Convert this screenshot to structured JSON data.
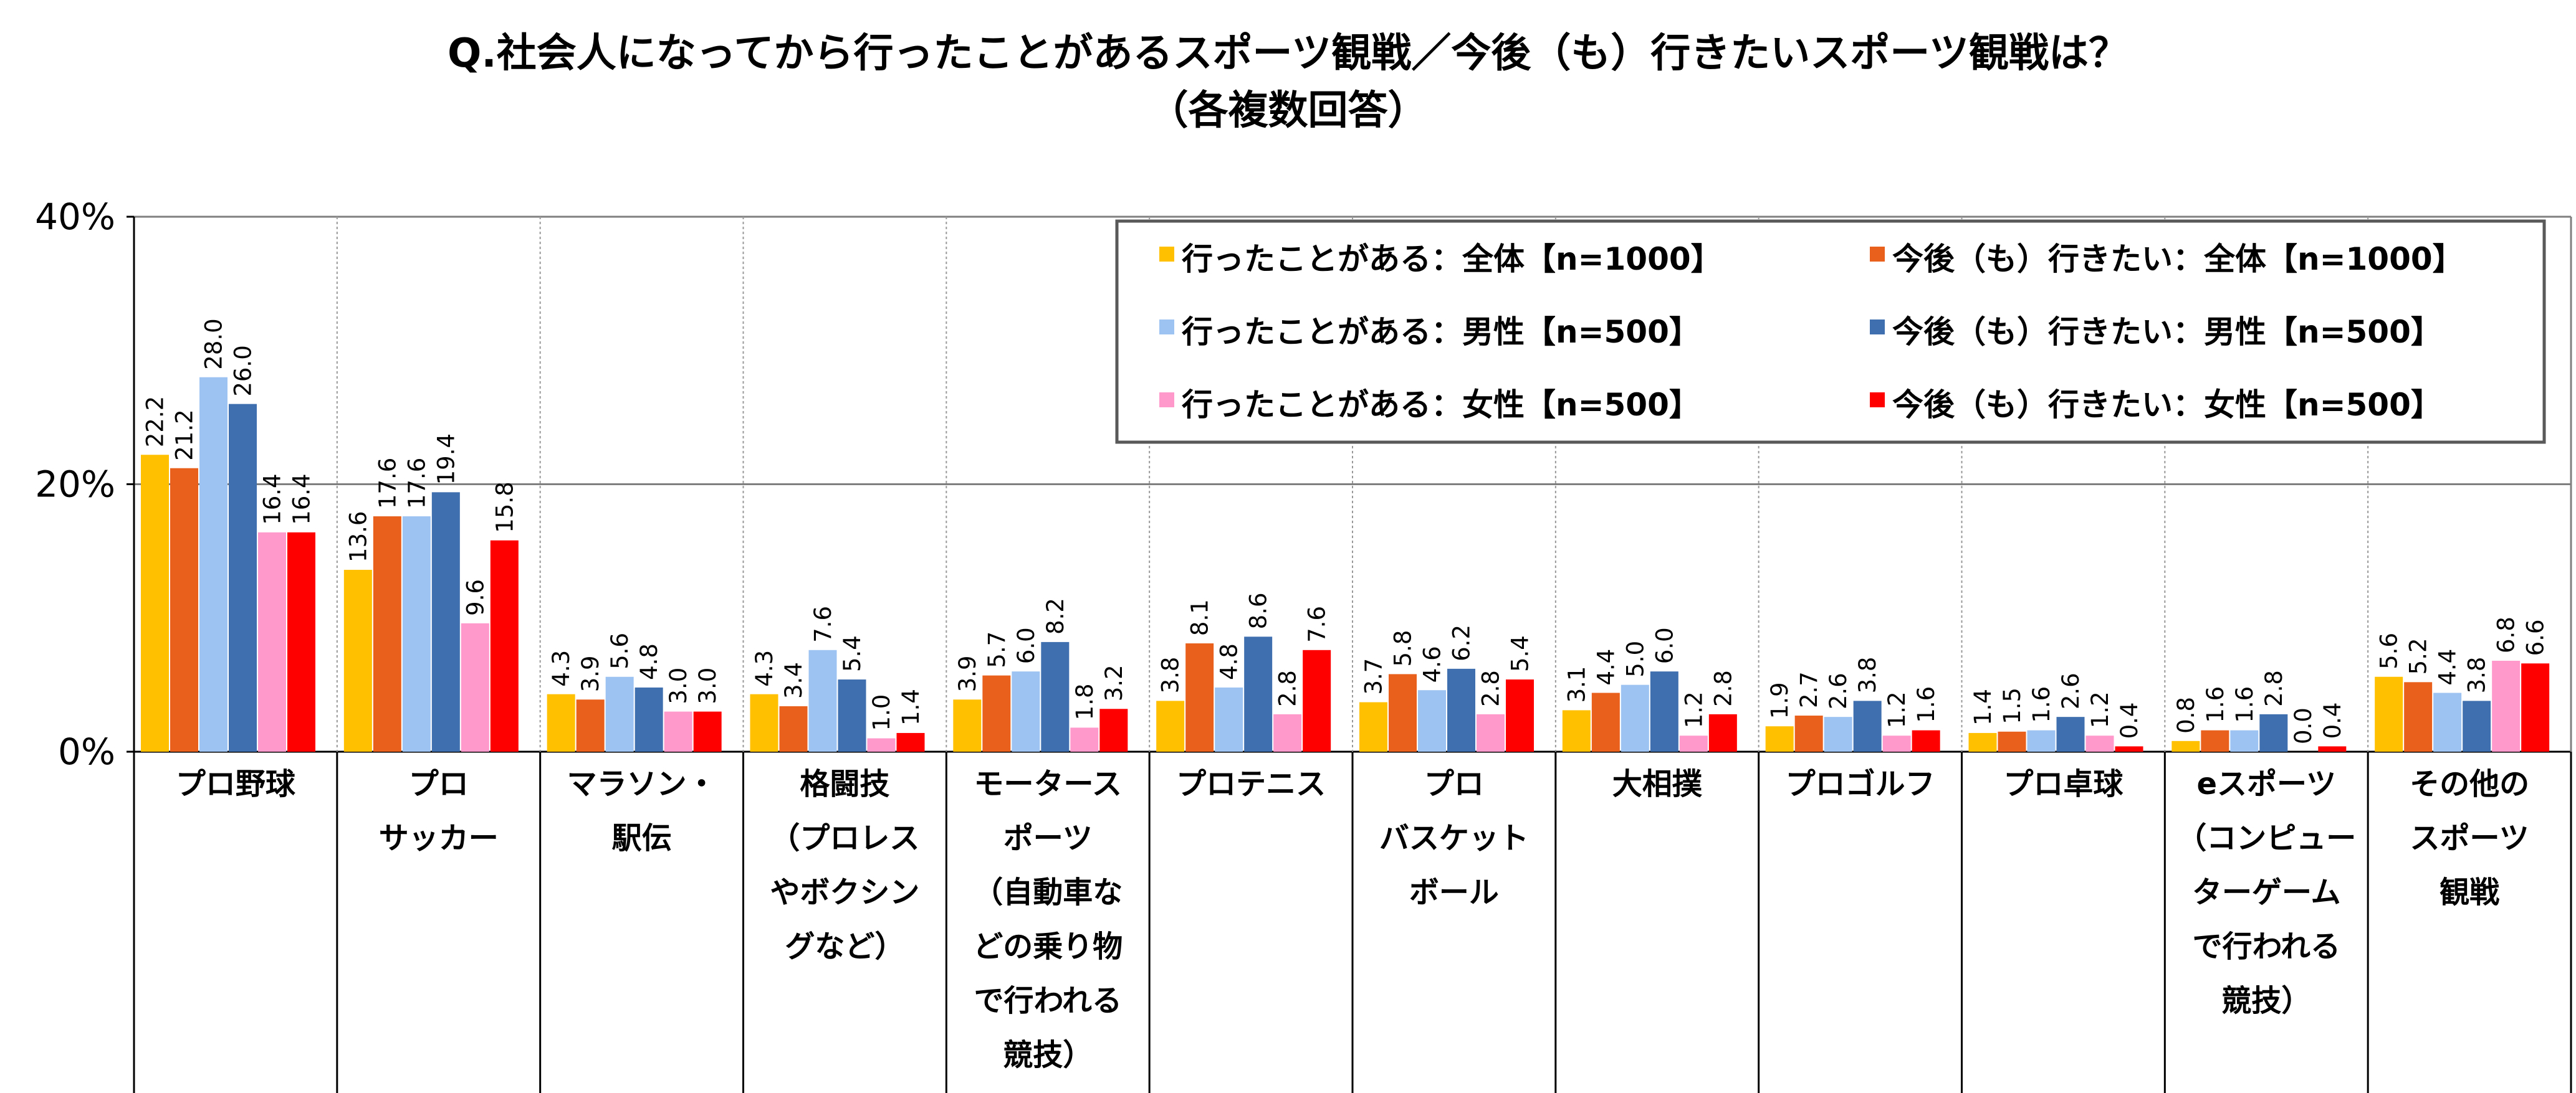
{
  "chart_data": {
    "type": "bar",
    "title_lines": [
      "Q.社会人になってから行ったことがあるスポーツ観戦／今後（も）行きたいスポーツ観戦は？",
      "（各複数回答）"
    ],
    "ylim": [
      0,
      40
    ],
    "yticks": [
      {
        "value": 0,
        "label": "0%"
      },
      {
        "value": 20,
        "label": "20%"
      },
      {
        "value": 40,
        "label": "40%"
      }
    ],
    "grid": true,
    "legend_position": "top-right",
    "categories": [
      [
        "プロ野球"
      ],
      [
        "プロ",
        "サッカー"
      ],
      [
        "マラソン・",
        "駅伝"
      ],
      [
        "格闘技",
        "（プロレス",
        "やボクシン",
        "グなど）"
      ],
      [
        "モータース",
        "ポーツ",
        "（自動車な",
        "どの乗り物",
        "で行われる",
        "競技）"
      ],
      [
        "プロテニス"
      ],
      [
        "プロ",
        "バスケット",
        "ボール"
      ],
      [
        "大相撲"
      ],
      [
        "プロゴルフ"
      ],
      [
        "プロ卓球"
      ],
      [
        "eスポーツ",
        "（コンピュー",
        "ターゲーム",
        "で行われる",
        "競技）"
      ],
      [
        "その他の",
        "スポーツ",
        "観戦"
      ]
    ],
    "series": [
      {
        "name": "行ったことがある：全体【n=1000】",
        "color": "#FFC000",
        "values": [
          22.2,
          13.6,
          4.3,
          4.3,
          3.9,
          3.8,
          3.7,
          3.1,
          1.9,
          1.4,
          0.8,
          5.6
        ]
      },
      {
        "name": "今後（も）行きたい：全体【n=1000】",
        "color": "#E8601C",
        "values": [
          21.2,
          17.6,
          3.9,
          3.4,
          5.7,
          8.1,
          5.8,
          4.4,
          2.7,
          1.5,
          1.6,
          5.2
        ]
      },
      {
        "name": "行ったことがある：男性【n=500】",
        "color": "#9DC3F2",
        "values": [
          28.0,
          17.6,
          5.6,
          7.6,
          6.0,
          4.8,
          4.6,
          5.0,
          2.6,
          1.6,
          1.6,
          4.4
        ]
      },
      {
        "name": "今後（も）行きたい：男性【n=500】",
        "color": "#3F6FAE",
        "values": [
          26.0,
          19.4,
          4.8,
          5.4,
          8.2,
          8.6,
          6.2,
          6.0,
          3.8,
          2.6,
          2.8,
          3.8
        ]
      },
      {
        "name": "行ったことがある：女性【n=500】",
        "color": "#FF99CC",
        "values": [
          16.4,
          9.6,
          3.0,
          1.0,
          1.8,
          2.8,
          2.8,
          1.2,
          1.2,
          1.2,
          0.0,
          6.8
        ]
      },
      {
        "name": "今後（も）行きたい：女性【n=500】",
        "color": "#FF0000",
        "values": [
          16.4,
          15.8,
          3.0,
          1.4,
          3.2,
          7.6,
          5.4,
          2.8,
          1.6,
          0.4,
          0.4,
          6.6
        ]
      }
    ]
  }
}
